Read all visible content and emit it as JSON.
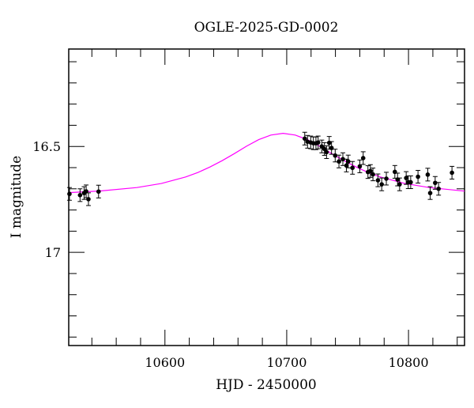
{
  "chart_data": {
    "type": "scatter",
    "title": "OGLE-2025-GD-0002",
    "xlabel": "HJD - 2450000",
    "ylabel": "I magnitude",
    "xlim": [
      10521,
      10846
    ],
    "ylim": [
      17.44,
      16.04
    ],
    "y_inverted": true,
    "x_ticks": [
      10600,
      10700,
      10800
    ],
    "x_minor_step": 20,
    "y_ticks": [
      16.5,
      17
    ],
    "y_tick_labels": [
      "16.5",
      "17"
    ],
    "y_minor_step": 0.1,
    "grid": false,
    "colors": {
      "data": "#000000",
      "model": "#ff00ff"
    },
    "yerr": 0.03,
    "points": {
      "x": [
        10521.6,
        10530.3,
        10533.6,
        10535.3,
        10537.2,
        10545.5,
        10714.8,
        10717.1,
        10719.7,
        10721.9,
        10724.0,
        10725.8,
        10728.8,
        10731.0,
        10732.7,
        10734.9,
        10736.8,
        10739.8,
        10742.9,
        10746.1,
        10749.0,
        10750.5,
        10754.0,
        10760.0,
        10762.8,
        10766.7,
        10768.7,
        10770.8,
        10774.9,
        10778.0,
        10781.8,
        10788.8,
        10791.0,
        10792.7,
        10798.1,
        10799.8,
        10801.8,
        10807.8,
        10815.8,
        10817.8,
        10821.9,
        10824.7,
        10835.7
      ],
      "y": [
        16.724,
        16.73,
        16.72,
        16.712,
        16.749,
        16.713,
        16.463,
        16.478,
        16.481,
        16.485,
        16.485,
        16.481,
        16.5,
        16.512,
        16.527,
        16.483,
        16.507,
        16.543,
        16.571,
        16.56,
        16.59,
        16.571,
        16.601,
        16.594,
        16.555,
        16.621,
        16.616,
        16.632,
        16.66,
        16.679,
        16.652,
        16.62,
        16.656,
        16.679,
        16.649,
        16.669,
        16.669,
        16.643,
        16.633,
        16.72,
        16.672,
        16.7,
        16.624
      ]
    },
    "model": {
      "x": [
        10521,
        10547,
        10577,
        10597,
        10617,
        10627,
        10637,
        10647,
        10657,
        10667,
        10677,
        10687,
        10697,
        10707,
        10717,
        10727,
        10737,
        10747,
        10757,
        10767,
        10777,
        10797,
        10817,
        10846
      ],
      "y": [
        16.718,
        16.71,
        16.694,
        16.675,
        16.644,
        16.623,
        16.597,
        16.567,
        16.534,
        16.499,
        16.468,
        16.446,
        16.438,
        16.446,
        16.468,
        16.499,
        16.534,
        16.567,
        16.597,
        16.623,
        16.644,
        16.675,
        16.694,
        16.711
      ]
    }
  }
}
